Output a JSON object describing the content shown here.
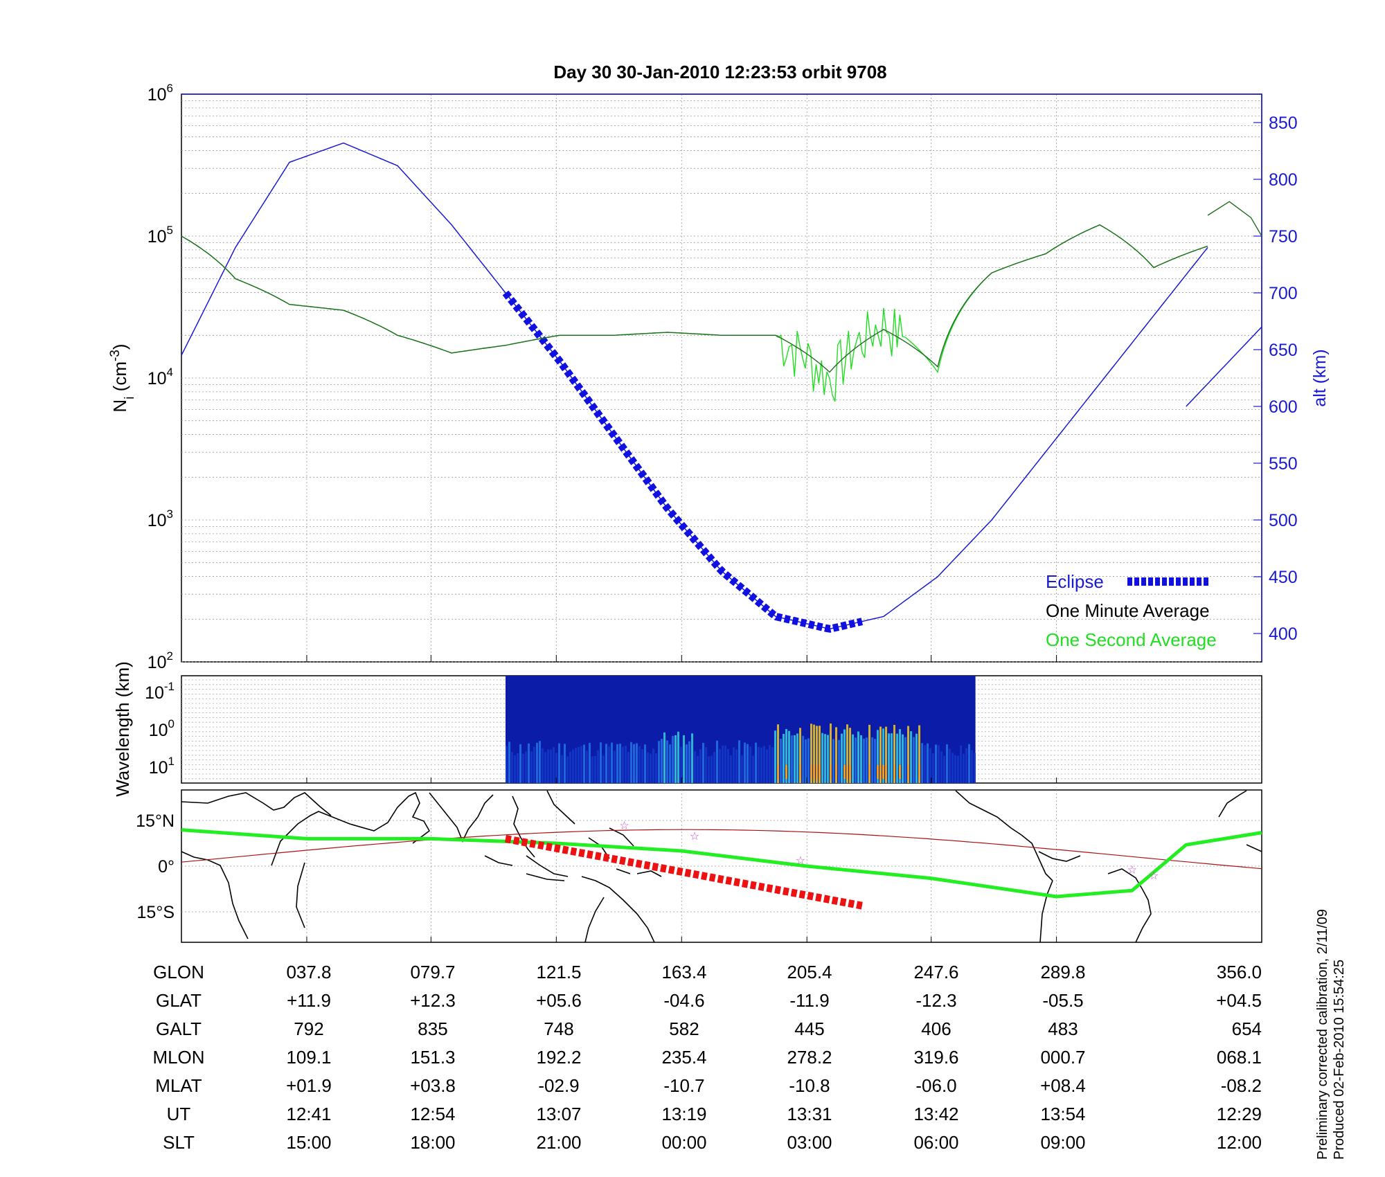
{
  "title": "Day 30  30-Jan-2010 12:23:53   orbit 9708",
  "panels": {
    "density": {
      "ylabel": "N",
      "ylabel_sub": "i",
      "ylabel_unit": " (cm",
      "ylabel_sup": "-3",
      "ylabel_close": ")",
      "y2label": "alt (km)",
      "yticks": [
        {
          "base": "10",
          "exp": "2",
          "value": 100
        },
        {
          "base": "10",
          "exp": "3",
          "value": 1000
        },
        {
          "base": "10",
          "exp": "4",
          "value": 10000
        },
        {
          "base": "10",
          "exp": "5",
          "value": 100000
        },
        {
          "base": "10",
          "exp": "6",
          "value": 1000000
        }
      ],
      "y2ticks": [
        "400",
        "450",
        "500",
        "550",
        "600",
        "650",
        "700",
        "750",
        "800",
        "850"
      ],
      "legend": {
        "eclipse": "Eclipse",
        "one_minute": "One Minute Average",
        "one_second": "One Second Average"
      }
    },
    "spectrogram": {
      "ylabel": "Wavelength (km)",
      "yticks": [
        {
          "base": "10",
          "exp": "-1"
        },
        {
          "base": "10",
          "exp": "0"
        },
        {
          "base": "10",
          "exp": "1"
        }
      ]
    },
    "map": {
      "yticks": [
        "15°N",
        "0°",
        "15°S"
      ]
    }
  },
  "colors": {
    "altitude": "#1a1ad0",
    "eclipse": "#1010e0",
    "one_minute": "#000000",
    "one_second": "#22dd22",
    "density_dark": "#1f6b1f",
    "map_track": "#22ee22",
    "map_eclipse": "#ee1111",
    "magnetic_equator": "#aa1111",
    "stars": "#cc44cc"
  },
  "table": {
    "row_labels": [
      "GLON",
      "GLAT",
      "GALT",
      "MLON",
      "MLAT",
      "UT",
      "SLT"
    ],
    "columns": [
      [
        "037.8",
        "+11.9",
        "792",
        "109.1",
        "+01.9",
        "12:41",
        "15:00"
      ],
      [
        "079.7",
        "+12.3",
        "835",
        "151.3",
        "+03.8",
        "12:54",
        "18:00"
      ],
      [
        "121.5",
        "+05.6",
        "748",
        "192.2",
        "-02.9",
        "13:07",
        "21:00"
      ],
      [
        "163.4",
        "-04.6",
        "582",
        "235.4",
        "-10.7",
        "13:19",
        "00:00"
      ],
      [
        "205.4",
        "-11.9",
        "445",
        "278.2",
        "-10.8",
        "13:31",
        "03:00"
      ],
      [
        "247.6",
        "-12.3",
        "406",
        "319.6",
        "-06.0",
        "13:42",
        "06:00"
      ],
      [
        "289.8",
        "-05.5",
        "483",
        "000.7",
        "+08.4",
        "13:54",
        "09:00"
      ],
      [
        "356.0",
        "+04.5",
        "654",
        "068.1",
        "-08.2",
        "12:29",
        "12:00"
      ]
    ]
  },
  "footnote": {
    "line1": "Preliminary corrected calibration, 2/11/09",
    "line2": "Produced 02-Feb-2010 15:54:25"
  },
  "chart_data": [
    {
      "type": "line",
      "title": "Day 30  30-Jan-2010 12:23:53   orbit 9708",
      "xlabel": "",
      "ylabel": "Ni (cm-3)",
      "y2label": "alt (km)",
      "yscale": "log",
      "ylim": [
        100,
        1000000
      ],
      "y2lim": [
        375,
        875
      ],
      "x": [
        0,
        0.05,
        0.1,
        0.15,
        0.2,
        0.25,
        0.3,
        0.35,
        0.4,
        0.45,
        0.5,
        0.55,
        0.6,
        0.65,
        0.7,
        0.75,
        0.8,
        0.85,
        0.9,
        0.95,
        1.0
      ],
      "series": [
        {
          "name": "One Minute Average",
          "values": [
            100000,
            50000,
            33000,
            30000,
            20000,
            15000,
            17000,
            20000,
            20000,
            21000,
            20000,
            20000,
            11000,
            22000,
            12000,
            55000,
            75000,
            120000,
            60000,
            85000,
            null
          ]
        },
        {
          "name": "One Second Average",
          "values": [
            100000,
            50000,
            33000,
            30000,
            20000,
            15000,
            17000,
            20000,
            20000,
            21000,
            20000,
            20000,
            10000,
            25000,
            11000,
            55000,
            75000,
            120000,
            60000,
            85000,
            null
          ]
        },
        {
          "name": "alt (km)",
          "values": [
            645,
            740,
            815,
            832,
            812,
            760,
            700,
            640,
            575,
            510,
            455,
            415,
            404,
            415,
            450,
            500,
            560,
            620,
            680,
            740,
            null
          ]
        }
      ],
      "eclipse_x": [
        0.3,
        0.63
      ],
      "legend": "bottom-right"
    },
    {
      "type": "heatmap",
      "ylabel": "Wavelength (km)",
      "yticks": [
        "10^-1",
        "10^0",
        "10^1"
      ],
      "x_range": [
        0.3,
        0.735
      ]
    },
    {
      "type": "line",
      "ytick_labels": [
        "15°N",
        "0°",
        "15°S"
      ],
      "ylim": [
        -25,
        25
      ],
      "x": [
        0,
        0.116,
        0.231,
        0.347,
        0.463,
        0.579,
        0.694,
        0.81,
        0.88,
        0.93,
        1.0
      ],
      "series": [
        {
          "name": "",
          "values": [
            11.9,
            9.0,
            9.0,
            7.5,
            5.0,
            0,
            -4.0,
            -10.0,
            -8.0,
            7.0,
            11.0
          ]
        }
      ],
      "eclipse_x": [
        0.3,
        0.63
      ],
      "eclipse_lat": [
        9.0,
        -13.0
      ]
    }
  ]
}
